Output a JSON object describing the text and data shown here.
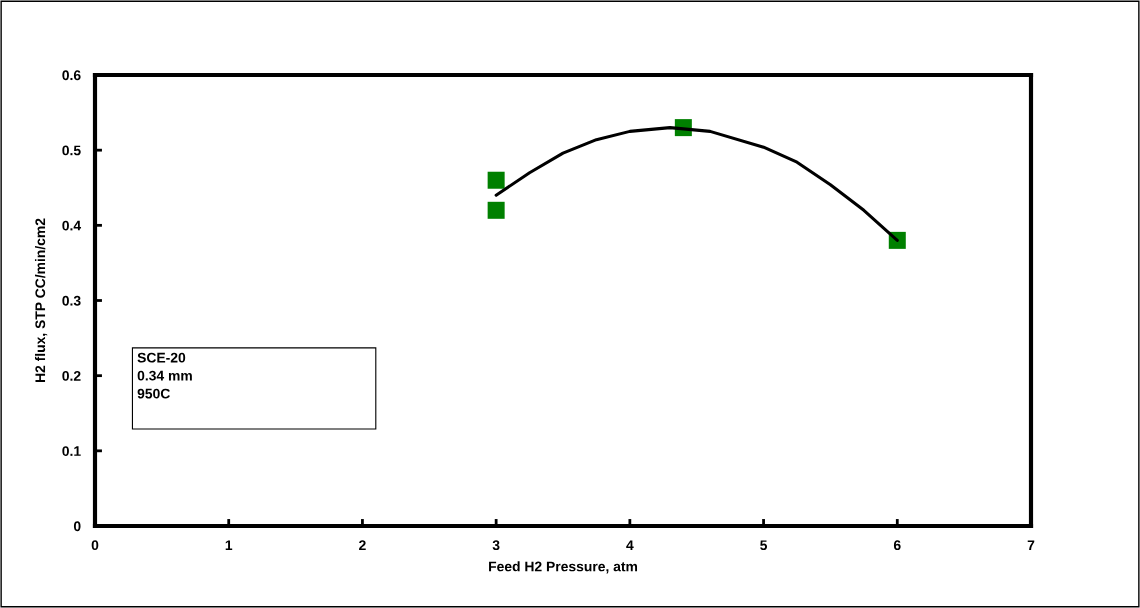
{
  "chart_data": {
    "type": "scatter",
    "xlabel": "Feed H2 Pressure, atm",
    "ylabel": "H2 flux, STP CC/min/cm2",
    "series": [
      {
        "color": "#008000",
        "x": [
          3,
          3,
          4.4,
          6
        ],
        "values": [
          0.46,
          0.42,
          0.53,
          0.38
        ],
        "marker": "square"
      },
      {
        "type": "line",
        "color": "#000000",
        "x": [
          3,
          3.25,
          3.5,
          3.75,
          4,
          4.3,
          4.6,
          5,
          5.25,
          5.5,
          5.75,
          6
        ],
        "values": [
          0.44,
          0.47,
          0.496,
          0.514,
          0.525,
          0.53,
          0.525,
          0.504,
          0.484,
          0.454,
          0.42,
          0.38
        ],
        "marker": "none"
      }
    ],
    "xlim": [
      0,
      7
    ],
    "xticks": [
      0,
      1,
      2,
      3,
      4,
      5,
      6,
      7
    ],
    "ylim": [
      0,
      0.6
    ],
    "yticks": [
      0,
      0.1,
      0.2,
      0.3,
      0.4,
      0.5,
      0.6
    ],
    "grid": false,
    "legend": false,
    "annotations": [
      "SCE-20",
      "0.34 mm",
      "950C"
    ]
  }
}
